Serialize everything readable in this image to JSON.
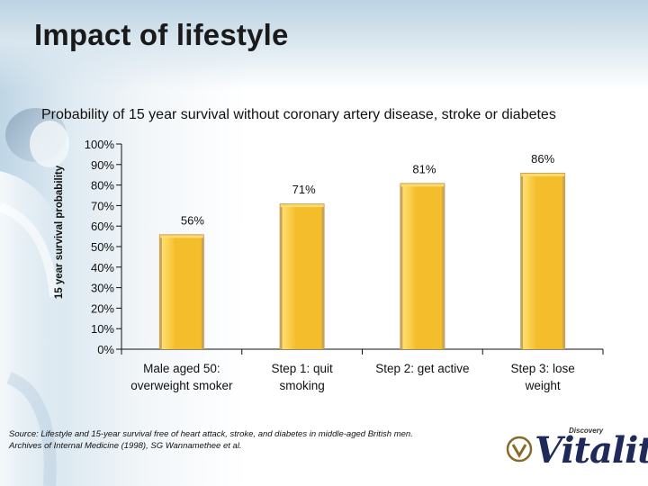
{
  "title": "Impact of lifestyle",
  "subtitle": "Probability of 15 year survival without coronary artery disease, stroke or diabetes",
  "source_lines": [
    " Source: Lifestyle and 15-year survival free of heart attack, stroke, and diabetes in middle-aged British men.",
    "Archives of Internal Medicine (1998), SG Wannamethee et al."
  ],
  "logo": {
    "brand_small": "Discovery",
    "wordmark": "Vitality"
  },
  "colors": {
    "bar_fill": "#f4bd2b",
    "bar_highlight": "#ffe070",
    "bar_shadow": "#caa25a",
    "axis": "#111111",
    "background_accent": "#bfd6e6"
  },
  "chart_data": {
    "type": "bar",
    "title": "",
    "xlabel": "",
    "ylabel": "15 year survival probability",
    "categories": [
      [
        "Male aged 50:",
        "overweight smoker"
      ],
      [
        "Step 1: quit",
        "smoking"
      ],
      [
        "Step 2: get active"
      ],
      [
        "Step 3: lose",
        "weight"
      ]
    ],
    "values": [
      56,
      71,
      81,
      86
    ],
    "data_labels": [
      "56%",
      "71%",
      "81%",
      "86%"
    ],
    "ylim": [
      0,
      100
    ],
    "yticks": [
      "0%",
      "10%",
      "20%",
      "30%",
      "40%",
      "50%",
      "60%",
      "70%",
      "80%",
      "90%",
      "100%"
    ],
    "grid": false,
    "legend": "none"
  }
}
